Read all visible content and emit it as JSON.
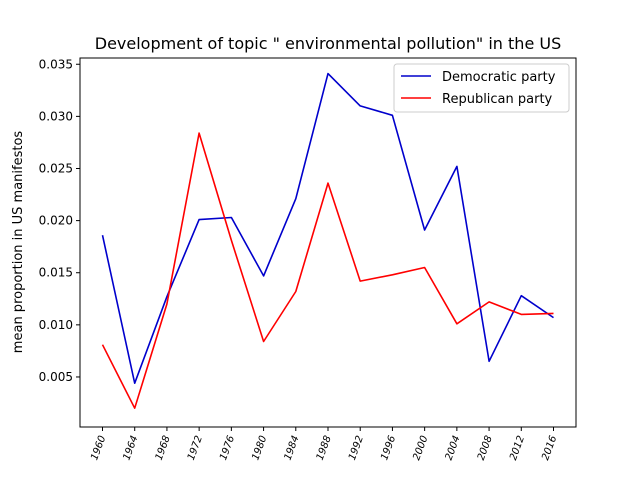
{
  "chart_data": {
    "type": "line",
    "title": "Development of topic \" environmental pollution\" in the US",
    "xlabel": "",
    "ylabel": "mean proportion in US manifestos",
    "x": [
      "1960",
      "1964",
      "1968",
      "1972",
      "1976",
      "1980",
      "1984",
      "1988",
      "1992",
      "1996",
      "2000",
      "2004",
      "2008",
      "2012",
      "2016"
    ],
    "ylim": [
      0.0002,
      0.0356
    ],
    "yticks": [
      0.005,
      0.01,
      0.015,
      0.02,
      0.025,
      0.03,
      0.035
    ],
    "ytick_labels": [
      "0.005",
      "0.010",
      "0.015",
      "0.020",
      "0.025",
      "0.030",
      "0.035"
    ],
    "grid": false,
    "legend_position": "top-right",
    "series": [
      {
        "name": "Democratic party",
        "color": "#0000cc",
        "values": [
          0.0186,
          0.0044,
          0.0127,
          0.0201,
          0.0203,
          0.0147,
          0.0221,
          0.0341,
          0.031,
          0.0301,
          0.0191,
          0.0252,
          0.0065,
          0.0128,
          0.0107
        ]
      },
      {
        "name": "Republican party",
        "color": "#ff0000",
        "values": [
          0.0081,
          0.002,
          0.012,
          0.0284,
          0.0181,
          0.0084,
          0.0132,
          0.0236,
          0.0142,
          0.0148,
          0.0155,
          0.0101,
          0.0122,
          0.011,
          0.0111
        ]
      }
    ]
  }
}
